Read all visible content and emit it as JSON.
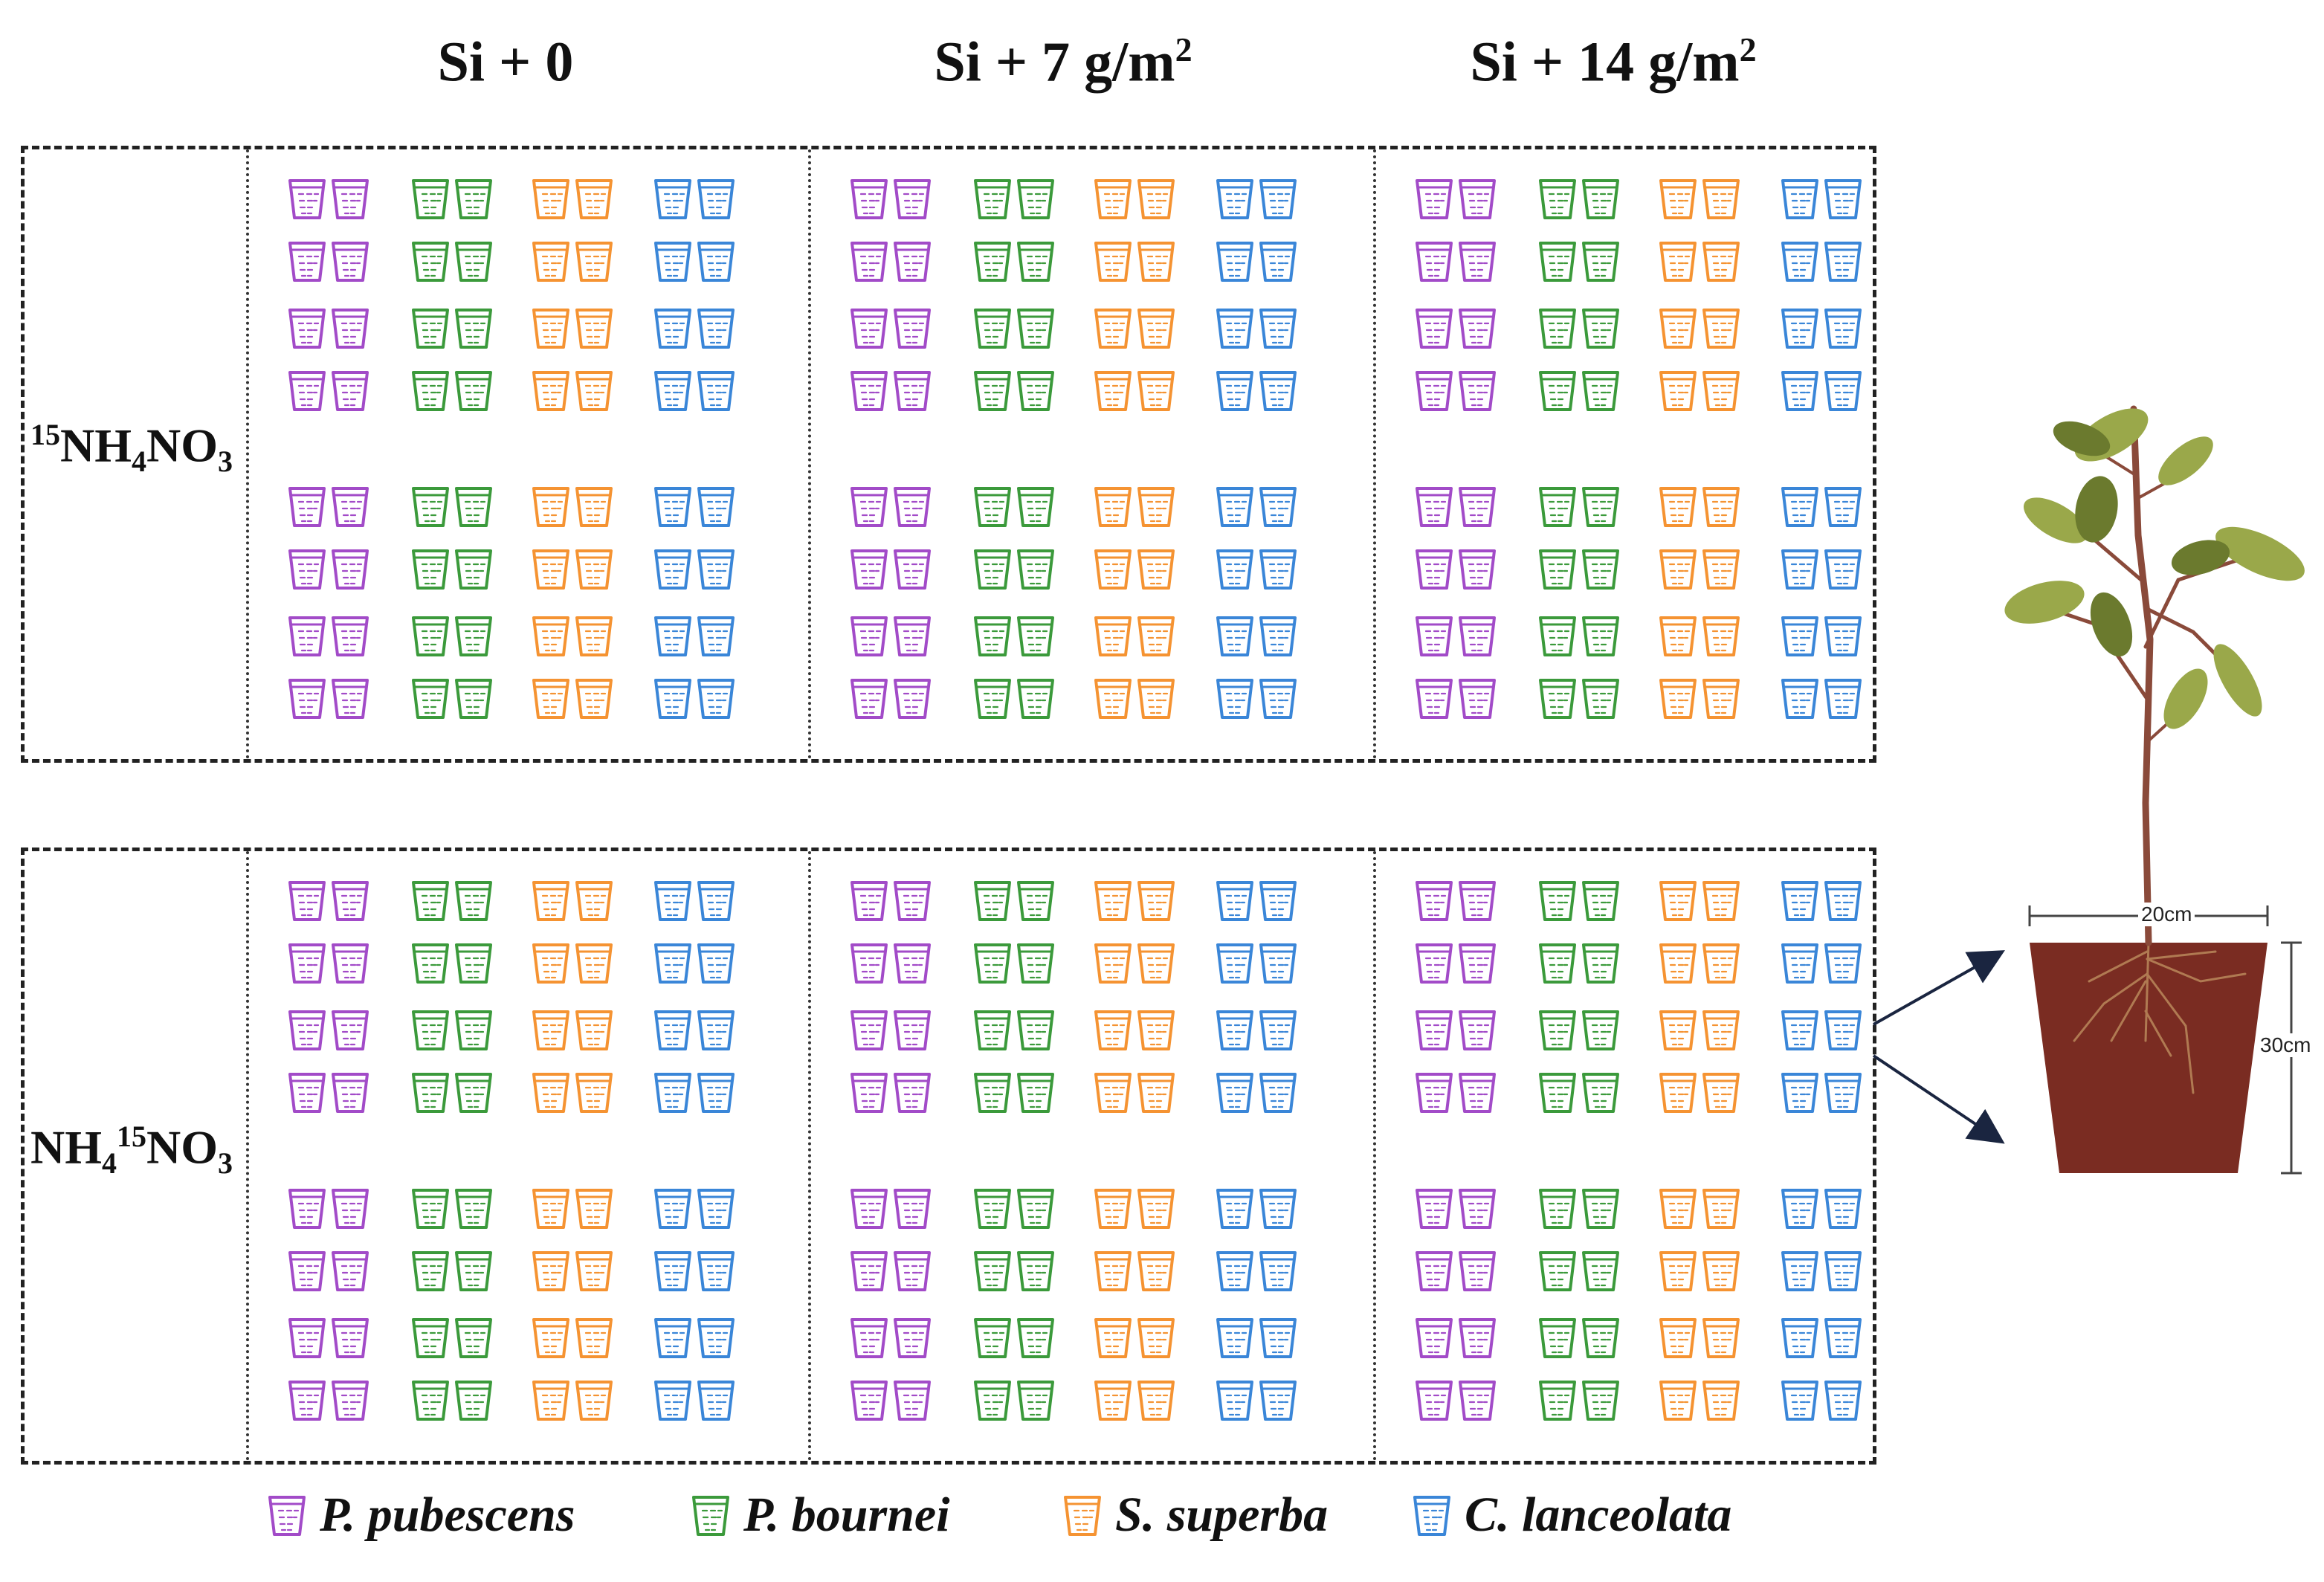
{
  "columns": [
    {
      "base": "Si + 0",
      "sup": ""
    },
    {
      "base": "Si + 7 g/m",
      "sup": "2"
    },
    {
      "base": "Si + 14 g/m",
      "sup": "2"
    }
  ],
  "rows": [
    {
      "p1": "",
      "s1": "15",
      "p2": "NH",
      "s2": "4",
      "p3": "NO",
      "s3": "3",
      "label_full": "15NH4NO3"
    },
    {
      "p1": "NH",
      "s1": "4",
      "p2": "",
      "s2": "15",
      "p3": "NO",
      "s3": "3",
      "label_full": "NH415NO3"
    }
  ],
  "species": [
    {
      "name": "P. pubescens",
      "color": "#a24bc8"
    },
    {
      "name": "P. bournei",
      "color": "#3b9a3b"
    },
    {
      "name": "S. superba",
      "color": "#f59332"
    },
    {
      "name": "C. lanceolata",
      "color": "#3a86d8"
    }
  ],
  "pot_dimensions": {
    "width": "20cm",
    "height": "30cm"
  },
  "colors": {
    "soil": "#7a2c22",
    "stem": "#8a4a3a",
    "leaf": "#9aa84a",
    "leaf_dark": "#6b7a2e",
    "frame": "#222222"
  }
}
